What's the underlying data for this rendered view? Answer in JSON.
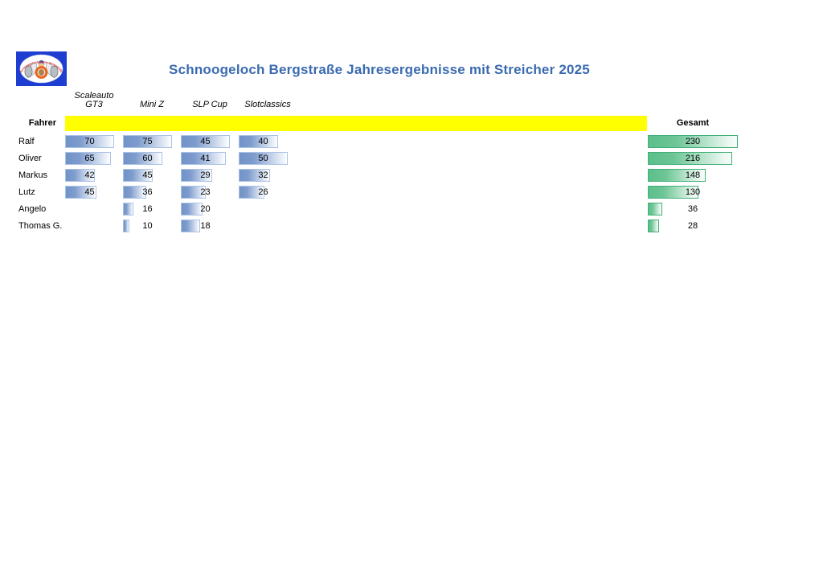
{
  "logo": {
    "arc_text": "Schnoogeloch-Racer-Bergstraße",
    "background": "#1e3ed1"
  },
  "chart_data": {
    "type": "table",
    "title": "Schnoogeloch Bergstraße Jahresergebnisse mit Streicher 2025",
    "title_color": "#3a6ab0",
    "row_header": "Fahrer",
    "category_columns": [
      "Scaleauto GT3",
      "Mini Z",
      "SLP Cup",
      "Slotclassics"
    ],
    "total_column": "Gesamt",
    "rows": [
      {
        "name": "Ralf",
        "values": [
          70,
          75,
          45,
          40
        ],
        "total": 230
      },
      {
        "name": "Oliver",
        "values": [
          65,
          60,
          41,
          50
        ],
        "total": 216
      },
      {
        "name": "Markus",
        "values": [
          42,
          45,
          29,
          32
        ],
        "total": 148
      },
      {
        "name": "Lutz",
        "values": [
          45,
          36,
          23,
          26
        ],
        "total": 130
      },
      {
        "name": "Angelo",
        "values": [
          null,
          16,
          20,
          null
        ],
        "total": 36
      },
      {
        "name": "Thomas G.",
        "values": [
          null,
          10,
          18,
          null
        ],
        "total": 28
      }
    ],
    "databars": {
      "scaling": "per column, 0 to column maximum",
      "category_bar_color": "#7193c8",
      "category_bar_border": "#abc3e5",
      "total_bar_color": "#5cbf8a",
      "total_bar_border": "#42b078",
      "header_band_color": "#ffff00"
    },
    "layout": {
      "legend": "none",
      "grid": "off"
    }
  }
}
